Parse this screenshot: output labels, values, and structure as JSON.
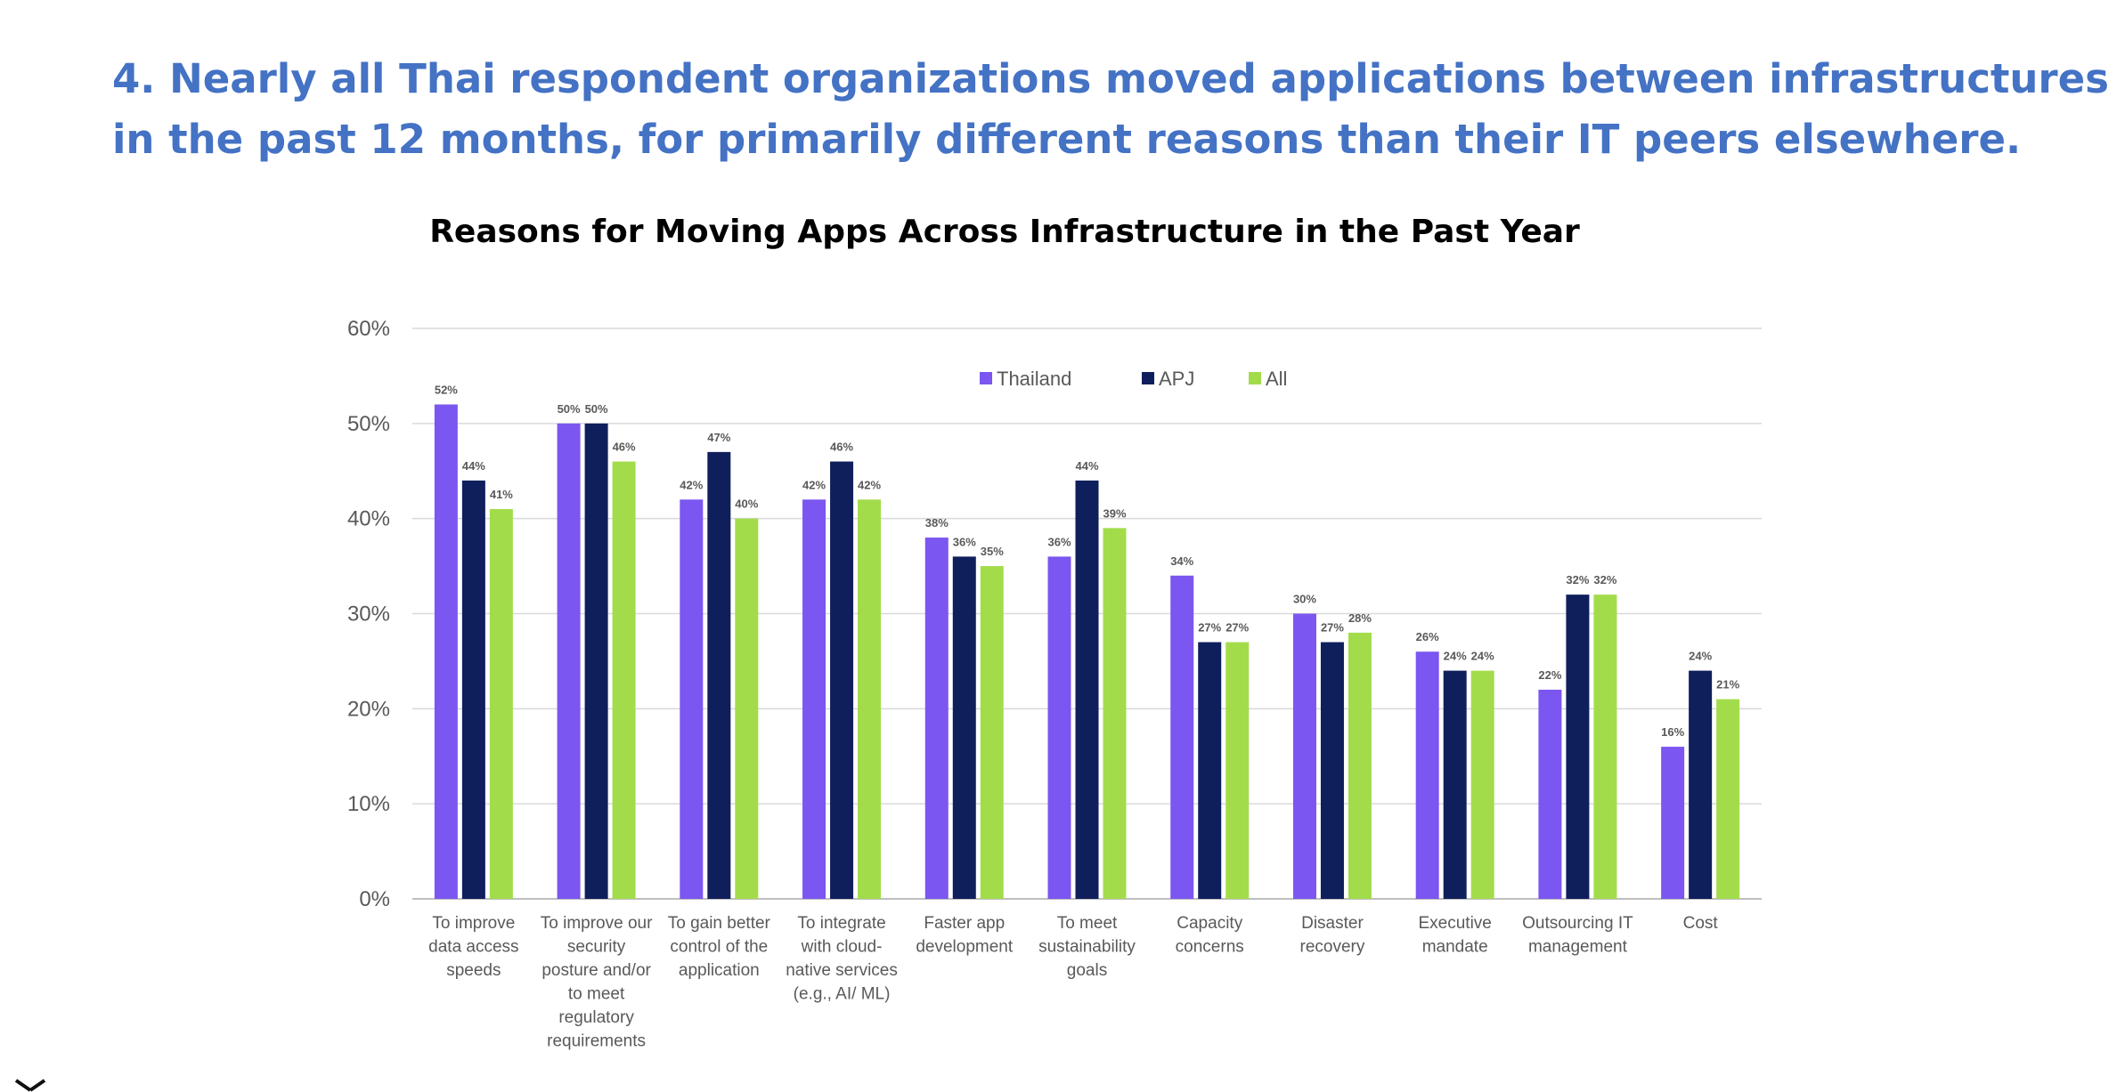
{
  "slide": {
    "headline_line1": "4. Nearly all Thai respondent organizations moved applications between infrastructures",
    "headline_line2": "in the past 12 months, for primarily different reasons than their IT peers elsewhere."
  },
  "chart_data": {
    "type": "bar",
    "title": "Reasons for Moving Apps Across Infrastructure in the Past Year",
    "xlabel": "",
    "ylabel": "",
    "ylim": [
      0,
      60
    ],
    "yticks": [
      "0%",
      "10%",
      "20%",
      "30%",
      "40%",
      "50%",
      "60%"
    ],
    "grid": true,
    "legend_position": "top-center",
    "categories": [
      [
        "To improve",
        "data access",
        "speeds"
      ],
      [
        "To improve our",
        "security",
        "posture and/or",
        "to meet",
        "regulatory",
        "requirements"
      ],
      [
        "To gain better",
        "control of the",
        "application"
      ],
      [
        "To integrate",
        "with cloud-",
        "native services",
        "(e.g., AI/ ML)"
      ],
      [
        "Faster app",
        "development"
      ],
      [
        "To meet",
        "sustainability",
        "goals"
      ],
      [
        "Capacity",
        "concerns"
      ],
      [
        "Disaster",
        "recovery"
      ],
      [
        "Executive",
        "mandate"
      ],
      [
        "Outsourcing IT",
        "management"
      ],
      [
        "Cost"
      ]
    ],
    "series": [
      {
        "name": "Thailand",
        "color": "#7b56f0",
        "values": [
          52,
          50,
          42,
          42,
          38,
          36,
          34,
          30,
          26,
          22,
          16
        ]
      },
      {
        "name": "APJ",
        "color": "#0f1f5c",
        "values": [
          44,
          50,
          47,
          46,
          36,
          44,
          27,
          27,
          24,
          32,
          24
        ]
      },
      {
        "name": "All",
        "color": "#a3dc4b",
        "values": [
          41,
          46,
          40,
          42,
          35,
          39,
          27,
          28,
          24,
          32,
          21
        ]
      }
    ],
    "value_suffix": "%"
  }
}
